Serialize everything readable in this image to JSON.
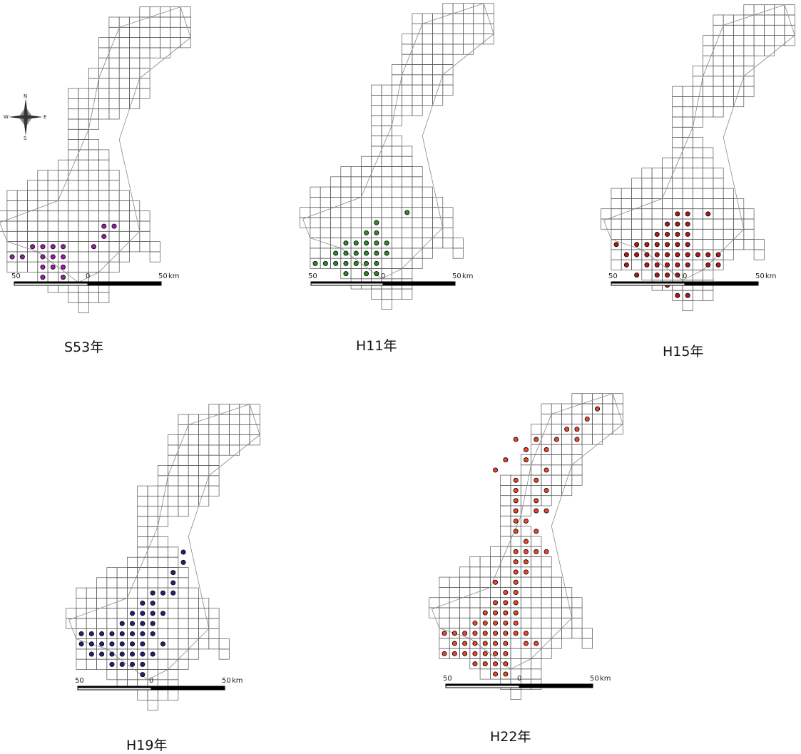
{
  "compass": {
    "n": "N",
    "s": "S",
    "e": "E",
    "w": "W"
  },
  "scale": {
    "left": "50",
    "center": "0",
    "right": "50",
    "unit": "km"
  },
  "maps": [
    {
      "year": "S53年",
      "dot_color": "#9b1fa6",
      "points": [
        [
          2,
          0
        ],
        [
          2,
          1
        ],
        [
          3,
          0
        ],
        [
          1,
          2
        ],
        [
          -2,
          2
        ],
        [
          -2,
          3
        ],
        [
          -3,
          2
        ],
        [
          -3,
          3
        ],
        [
          -3,
          4
        ],
        [
          -4,
          2
        ],
        [
          -4,
          3
        ],
        [
          -4,
          4
        ],
        [
          -5,
          2
        ],
        [
          -6,
          3
        ],
        [
          -7,
          3
        ],
        [
          -4,
          5
        ],
        [
          -2,
          4
        ],
        [
          -2,
          5
        ]
      ]
    },
    {
      "year": "H11年",
      "dot_color": "#2e8b2e",
      "points": [
        [
          2,
          -1
        ],
        [
          -1,
          0
        ],
        [
          -2,
          1
        ],
        [
          -1,
          1
        ],
        [
          -2,
          2
        ],
        [
          -1,
          2
        ],
        [
          0,
          2
        ],
        [
          -3,
          2
        ],
        [
          -4,
          2
        ],
        [
          -4,
          3
        ],
        [
          -3,
          3
        ],
        [
          -2,
          3
        ],
        [
          -1,
          3
        ],
        [
          0,
          3
        ],
        [
          -5,
          3
        ],
        [
          -6,
          4
        ],
        [
          -5,
          4
        ],
        [
          -4,
          4
        ],
        [
          -3,
          4
        ],
        [
          -2,
          4
        ],
        [
          -1,
          4
        ],
        [
          -7,
          4
        ],
        [
          -4,
          5
        ],
        [
          -2,
          5
        ],
        [
          -1,
          5
        ]
      ]
    },
    {
      "year": "H15年",
      "dot_color": "#b0191a",
      "points": [
        [
          2,
          -1
        ],
        [
          0,
          -1
        ],
        [
          -1,
          -1
        ],
        [
          0,
          0
        ],
        [
          -1,
          0
        ],
        [
          -2,
          0
        ],
        [
          0,
          1
        ],
        [
          -1,
          1
        ],
        [
          -2,
          1
        ],
        [
          -3,
          1
        ],
        [
          0,
          2
        ],
        [
          -1,
          2
        ],
        [
          -2,
          2
        ],
        [
          -3,
          2
        ],
        [
          -4,
          2
        ],
        [
          -5,
          2
        ],
        [
          -7,
          2
        ],
        [
          1,
          3
        ],
        [
          0,
          3
        ],
        [
          -1,
          3
        ],
        [
          -2,
          3
        ],
        [
          -3,
          3
        ],
        [
          -4,
          3
        ],
        [
          -5,
          3
        ],
        [
          -6,
          3
        ],
        [
          2,
          3
        ],
        [
          3,
          3
        ],
        [
          3,
          4
        ],
        [
          2,
          4
        ],
        [
          0,
          4
        ],
        [
          -1,
          4
        ],
        [
          -2,
          4
        ],
        [
          -3,
          4
        ],
        [
          -4,
          4
        ],
        [
          -6,
          4
        ],
        [
          -1,
          5
        ],
        [
          -2,
          5
        ],
        [
          -3,
          5
        ],
        [
          -5,
          5
        ],
        [
          -2,
          6
        ],
        [
          -1,
          7
        ],
        [
          0,
          7
        ]
      ]
    },
    {
      "year": "H19年",
      "dot_color": "#1f2277",
      "points": [
        [
          3,
          -7
        ],
        [
          3,
          -6
        ],
        [
          2,
          -5
        ],
        [
          2,
          -4
        ],
        [
          2,
          -3
        ],
        [
          1,
          -3
        ],
        [
          0,
          -3
        ],
        [
          -1,
          -2
        ],
        [
          0,
          -2
        ],
        [
          -2,
          -1
        ],
        [
          -1,
          -1
        ],
        [
          0,
          -1
        ],
        [
          1,
          -1
        ],
        [
          -3,
          0
        ],
        [
          -2,
          0
        ],
        [
          -1,
          0
        ],
        [
          0,
          0
        ],
        [
          -4,
          1
        ],
        [
          -3,
          1
        ],
        [
          -2,
          1
        ],
        [
          -1,
          1
        ],
        [
          0,
          1
        ],
        [
          -6,
          1
        ],
        [
          -7,
          1
        ],
        [
          -5,
          1
        ],
        [
          -3,
          2
        ],
        [
          -2,
          2
        ],
        [
          -1,
          2
        ],
        [
          -4,
          2
        ],
        [
          -5,
          2
        ],
        [
          -6,
          2
        ],
        [
          1,
          2
        ],
        [
          -7,
          2
        ],
        [
          -3,
          3
        ],
        [
          -2,
          3
        ],
        [
          -1,
          3
        ],
        [
          -4,
          3
        ],
        [
          -5,
          3
        ],
        [
          -6,
          3
        ],
        [
          0,
          3
        ],
        [
          -1,
          4
        ],
        [
          -2,
          4
        ],
        [
          -3,
          4
        ],
        [
          -4,
          4
        ],
        [
          -1,
          5
        ]
      ]
    },
    {
      "year": "H22年",
      "dot_color": "#e8462a",
      "points": [
        [
          8,
          -20
        ],
        [
          7,
          -19
        ],
        [
          5,
          -18
        ],
        [
          4,
          -17
        ],
        [
          6,
          -18
        ],
        [
          6,
          -17
        ],
        [
          3,
          -16
        ],
        [
          2,
          -17
        ],
        [
          0,
          -17
        ],
        [
          1,
          -16
        ],
        [
          3,
          -14
        ],
        [
          2,
          -13
        ],
        [
          3,
          -12
        ],
        [
          2,
          -11
        ],
        [
          3,
          -10
        ],
        [
          2,
          -10
        ],
        [
          1,
          -9
        ],
        [
          2,
          -8
        ],
        [
          -1,
          -15
        ],
        [
          -2,
          -14
        ],
        [
          1,
          -15
        ],
        [
          0,
          -13
        ],
        [
          0,
          -12
        ],
        [
          0,
          -11
        ],
        [
          0,
          -10
        ],
        [
          0,
          -9
        ],
        [
          0,
          -8
        ],
        [
          1,
          -7
        ],
        [
          0,
          -6
        ],
        [
          1,
          -6
        ],
        [
          2,
          -6
        ],
        [
          3,
          -6
        ],
        [
          0,
          -5
        ],
        [
          1,
          -5
        ],
        [
          0,
          -4
        ],
        [
          1,
          -4
        ],
        [
          0,
          -3
        ],
        [
          -2,
          -3
        ],
        [
          -1,
          -2
        ],
        [
          0,
          -2
        ],
        [
          -2,
          -1
        ],
        [
          -1,
          -1
        ],
        [
          0,
          -1
        ],
        [
          -3,
          0
        ],
        [
          -2,
          0
        ],
        [
          -1,
          0
        ],
        [
          0,
          0
        ],
        [
          -4,
          1
        ],
        [
          -3,
          1
        ],
        [
          -2,
          1
        ],
        [
          -1,
          1
        ],
        [
          0,
          1
        ],
        [
          -3,
          2
        ],
        [
          -2,
          2
        ],
        [
          -1,
          2
        ],
        [
          0,
          2
        ],
        [
          1,
          2
        ],
        [
          -4,
          2
        ],
        [
          -5,
          2
        ],
        [
          -6,
          2
        ],
        [
          -7,
          2
        ],
        [
          -4,
          3
        ],
        [
          -5,
          3
        ],
        [
          -6,
          3
        ],
        [
          -3,
          3
        ],
        [
          -2,
          3
        ],
        [
          -1,
          3
        ],
        [
          1,
          3
        ],
        [
          2,
          3
        ],
        [
          -4,
          4
        ],
        [
          -3,
          4
        ],
        [
          -2,
          4
        ],
        [
          -1,
          4
        ],
        [
          -5,
          4
        ],
        [
          -6,
          4
        ],
        [
          -7,
          4
        ],
        [
          -3,
          5
        ],
        [
          -2,
          5
        ],
        [
          -1,
          5
        ],
        [
          -4,
          5
        ],
        [
          -2,
          6
        ],
        [
          -1,
          6
        ]
      ]
    }
  ]
}
